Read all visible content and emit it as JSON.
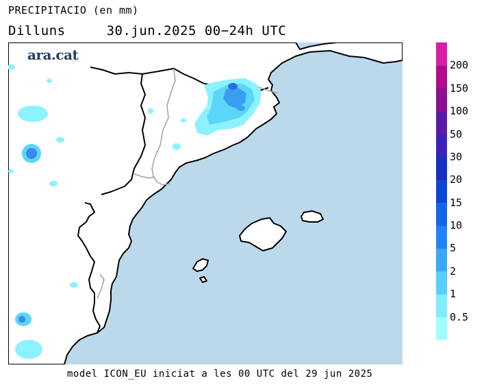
{
  "header": {
    "title": "PRECIPITACIO (en mm)",
    "day": "Dilluns",
    "date_range": "30.jun.2025 00−24h UTC"
  },
  "logo": {
    "text": "ara.cat"
  },
  "footer": {
    "text": "model ICON_EU iniciat a les 00 UTC del 29 jun 2025"
  },
  "map": {
    "sea_color": "#bcd9ec",
    "land_color": "#ffffff",
    "border_color": "#000000",
    "regional_border_color": "#a0a0a0",
    "precip_light": "#8cf2ff",
    "precip_mid": "#5cd6f8",
    "precip_dark": "#3a9ef0",
    "precip_core": "#2b6de6"
  },
  "legend": {
    "thresholds": [
      "0.5",
      "1",
      "2",
      "5",
      "10",
      "15",
      "20",
      "30",
      "50",
      "100",
      "150",
      "200"
    ],
    "colors": [
      "#a0ffff",
      "#7eeefe",
      "#56d0fa",
      "#3aa8f7",
      "#1e84f5",
      "#1565ea",
      "#0d45d8",
      "#1630c0",
      "#3a22b8",
      "#5a1aa8",
      "#8c1090",
      "#b20a8e",
      "#d81ea8"
    ]
  }
}
